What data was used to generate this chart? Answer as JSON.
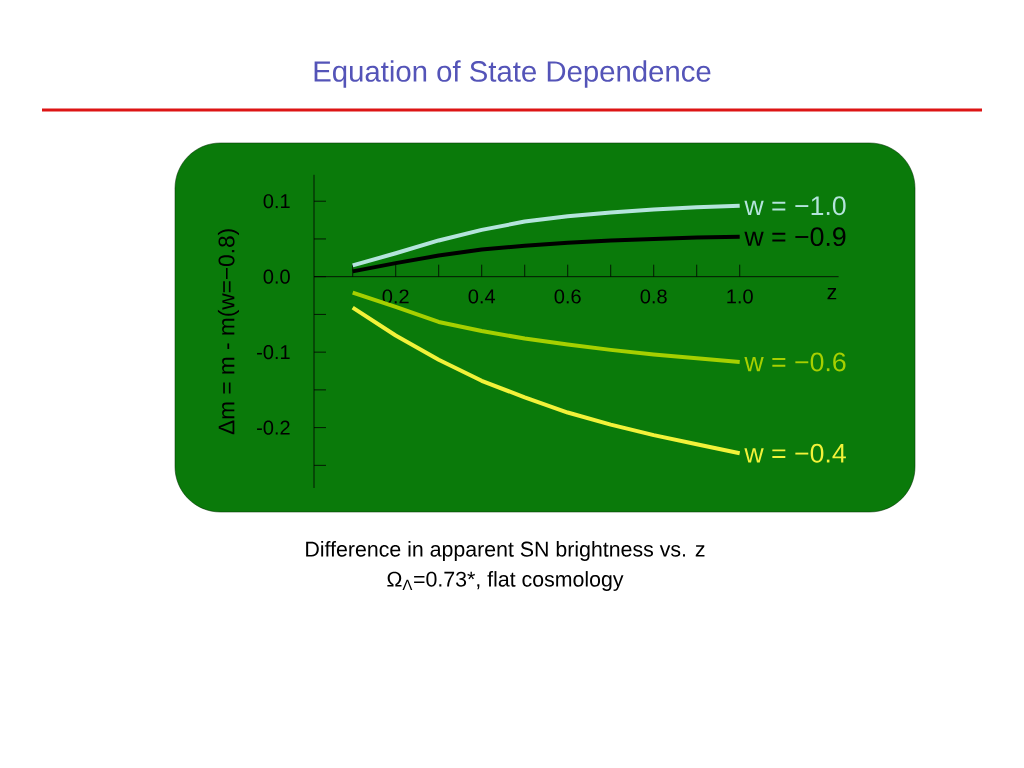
{
  "chart_data": {
    "type": "line",
    "title": "Equation of State Dependence",
    "xlabel": "z",
    "ylabel": "Δm = m - m(w=−0.8)",
    "x": [
      0.1,
      0.2,
      0.3,
      0.4,
      0.5,
      0.6,
      0.7,
      0.8,
      0.9,
      1.0
    ],
    "series": [
      {
        "name": "w = −1.0",
        "color": "#b4e4dc",
        "values": [
          0.015,
          0.031,
          0.048,
          0.062,
          0.073,
          0.08,
          0.085,
          0.089,
          0.092,
          0.094
        ]
      },
      {
        "name": "w = −0.9",
        "color": "#000000",
        "values": [
          0.007,
          0.018,
          0.028,
          0.036,
          0.041,
          0.045,
          0.048,
          0.05,
          0.052,
          0.053
        ]
      },
      {
        "name": "w = −0.6",
        "color": "#a6d000",
        "values": [
          -0.021,
          -0.04,
          -0.06,
          -0.072,
          -0.082,
          -0.09,
          -0.097,
          -0.103,
          -0.108,
          -0.113
        ]
      },
      {
        "name": "w = −0.4",
        "color": "#f2f23a",
        "values": [
          -0.041,
          -0.078,
          -0.11,
          -0.138,
          -0.16,
          -0.18,
          -0.196,
          -0.21,
          -0.222,
          -0.234
        ]
      }
    ],
    "xlim": [
      0.01,
      1.23
    ],
    "ylim": [
      -0.28,
      0.135
    ],
    "xticks": [
      {
        "value": 0.1,
        "label": null
      },
      0.2,
      {
        "value": 0.3,
        "label": null
      },
      0.4,
      {
        "value": 0.5,
        "label": null
      },
      0.6,
      {
        "value": 0.7,
        "label": null
      },
      0.8,
      {
        "value": 0.9,
        "label": null
      },
      {
        "value": 1.0,
        "label": "1.0"
      }
    ],
    "yticks": [
      {
        "value": -0.25,
        "label": null
      },
      -0.2,
      {
        "value": -0.15,
        "label": null
      },
      -0.1,
      {
        "value": -0.05,
        "label": null
      },
      {
        "value": 0,
        "label": "0.0"
      },
      {
        "value": 0.05,
        "label": null
      },
      0.1
    ],
    "line_style": "solid",
    "annotations": [
      "Difference in apparent SN brightness vs. z",
      "Ω$_{Λ}$=0.73*, flat cosmology"
    ]
  }
}
